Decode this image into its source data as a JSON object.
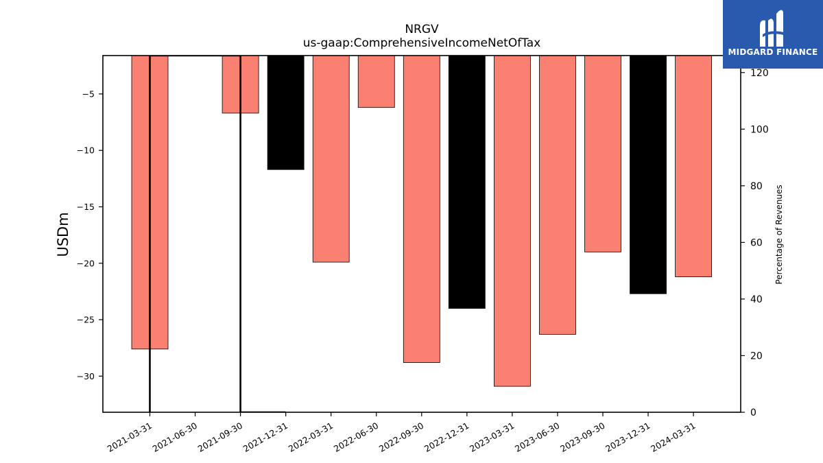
{
  "chart_data": {
    "type": "bar",
    "title": "NRGV",
    "subtitle": "us-gaap:ComprehensiveIncomeNetOfTax",
    "ylabel": "USDm",
    "y2label": "Percentage of Revenues",
    "ylim": [
      -33.2,
      -1.6
    ],
    "y2lim": [
      0,
      126
    ],
    "yticks": [
      -5,
      -10,
      -15,
      -20,
      -25,
      -30
    ],
    "y2ticks": [
      0,
      20,
      40,
      60,
      80,
      100,
      120
    ],
    "categories": [
      "2021-03-31",
      "2021-06-30",
      "2021-09-30",
      "2021-12-31",
      "2022-03-31",
      "2022-06-30",
      "2022-09-30",
      "2022-12-31",
      "2023-03-31",
      "2023-06-30",
      "2023-09-30",
      "2023-12-31",
      "2024-03-31"
    ],
    "bars": [
      {
        "x": "2021-03-31",
        "value": -27.6,
        "color": "#fa8072"
      },
      {
        "x": "2021-09-30",
        "value": -6.7,
        "color": "#fa8072"
      },
      {
        "x": "2021-12-31",
        "value": -11.7,
        "color": "#000000"
      },
      {
        "x": "2022-03-31",
        "value": -19.9,
        "color": "#fa8072"
      },
      {
        "x": "2022-06-30",
        "value": -6.2,
        "color": "#fa8072"
      },
      {
        "x": "2022-09-30",
        "value": -28.8,
        "color": "#fa8072"
      },
      {
        "x": "2022-12-31",
        "value": -24.0,
        "color": "#000000"
      },
      {
        "x": "2023-03-31",
        "value": -30.9,
        "color": "#fa8072"
      },
      {
        "x": "2023-06-30",
        "value": -26.3,
        "color": "#fa8072"
      },
      {
        "x": "2023-09-30",
        "value": -19.0,
        "color": "#fa8072"
      },
      {
        "x": "2023-12-31",
        "value": -22.7,
        "color": "#000000"
      },
      {
        "x": "2024-03-31",
        "value": -21.2,
        "color": "#fa8072"
      }
    ],
    "percentage_line": {
      "color": "#000000",
      "points": [
        {
          "x": "2021-03-31",
          "value": 0
        },
        {
          "x": "2021-03-31",
          "value": 126
        },
        {
          "x": "2021-09-30",
          "value": 126
        },
        {
          "x": "2021-09-30",
          "value": 0
        },
        {
          "x": "2021-12-31",
          "value": 0
        }
      ]
    },
    "grid": false,
    "legend": "none"
  },
  "logo": {
    "text": "MIDGARD FINANCE",
    "background": "#2a5aad"
  }
}
